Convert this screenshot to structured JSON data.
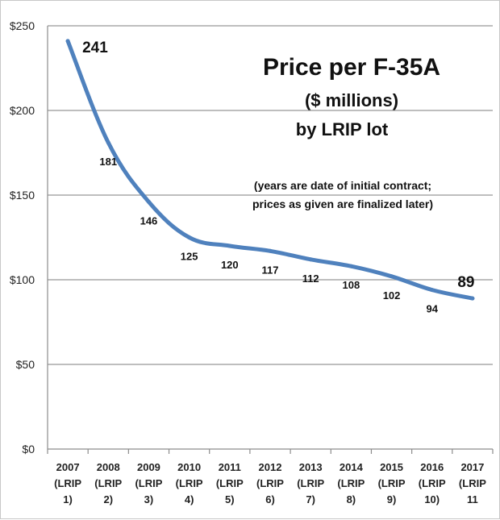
{
  "chart_data": {
    "type": "line",
    "title": "Price per F-35A",
    "subtitle_lines": [
      "($ millions)",
      "by LRIP lot"
    ],
    "note_lines": [
      "(years are date of initial contract;",
      "prices as given are finalized later)"
    ],
    "ylim": [
      0,
      250
    ],
    "y_ticks": [
      "$0",
      "$50",
      "$100",
      "$150",
      "$200",
      "$250"
    ],
    "y_tick_values": [
      0,
      50,
      100,
      150,
      200,
      250
    ],
    "grid": true,
    "line_color": "#4f81bd",
    "categories": [
      [
        "2007",
        "(LRIP",
        "1)"
      ],
      [
        "2008",
        "(LRIP",
        "2)"
      ],
      [
        "2009",
        "(LRIP",
        "3)"
      ],
      [
        "2010",
        "(LRIP",
        "4)"
      ],
      [
        "2011",
        "(LRIP",
        "5)"
      ],
      [
        "2012",
        "(LRIP",
        "6)"
      ],
      [
        "2013",
        "(LRIP",
        "7)"
      ],
      [
        "2014",
        "(LRIP",
        "8)"
      ],
      [
        "2015",
        "(LRIP",
        "9)"
      ],
      [
        "2016",
        "(LRIP",
        "10)"
      ],
      [
        "2017",
        "(LRIP",
        "11"
      ]
    ],
    "series": [
      {
        "values": [
          241,
          181,
          146,
          125,
          120,
          117,
          112,
          108,
          102,
          94,
          89
        ]
      }
    ]
  }
}
